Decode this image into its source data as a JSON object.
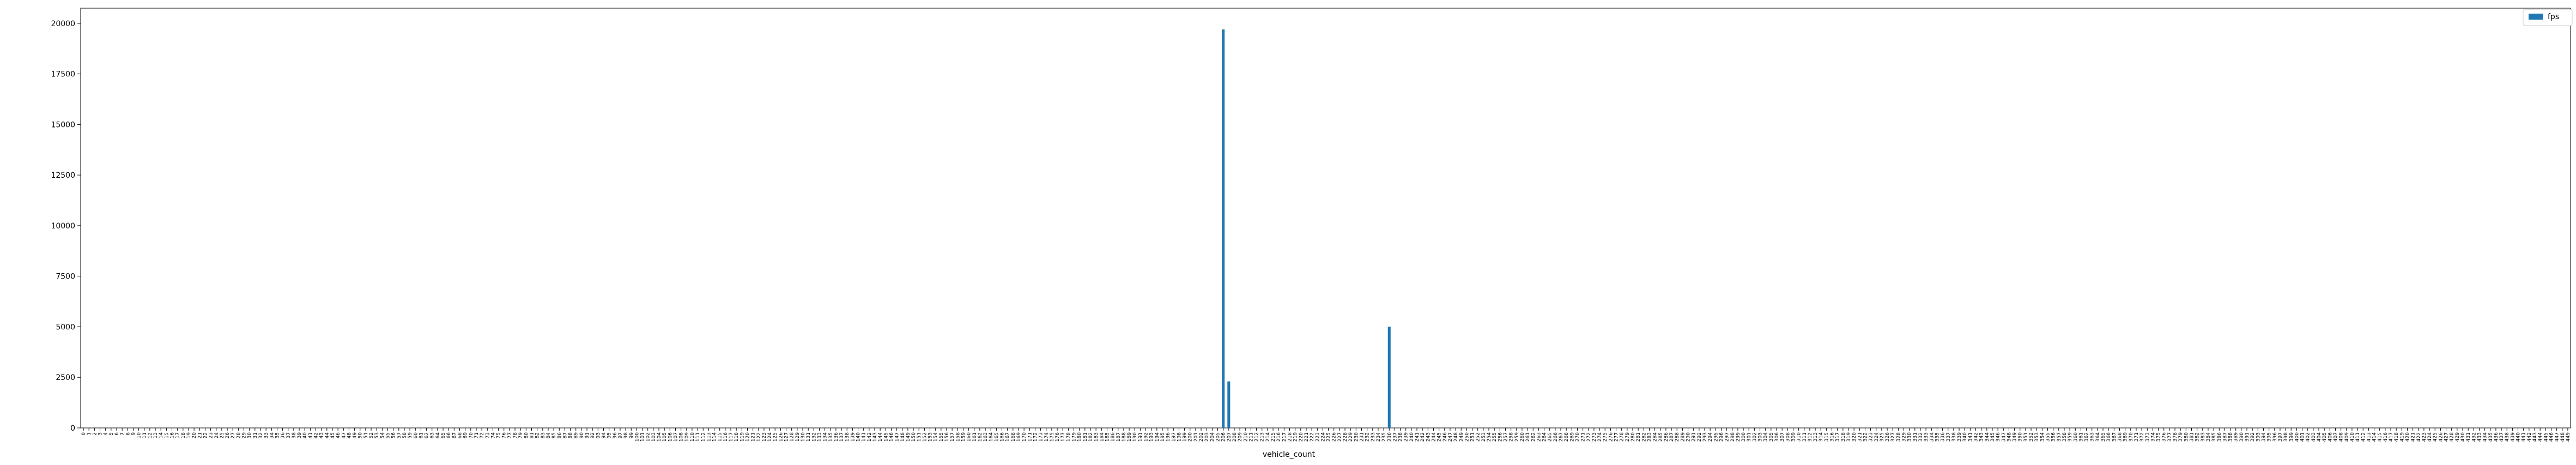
{
  "chart_data": {
    "type": "bar",
    "xlabel": "vehicle_count",
    "ylabel": "",
    "title": "",
    "category_start": 0,
    "category_count": 450,
    "ylim": [
      0,
      20750
    ],
    "yticks": [
      0,
      2500,
      5000,
      7500,
      10000,
      12500,
      15000,
      17500,
      20000
    ],
    "legend_position": "upper right",
    "grid": false,
    "series": [
      {
        "name": "fps",
        "color": "#1f77b4",
        "nonzero_points": [
          {
            "category": 206,
            "value": 19700
          },
          {
            "category": 207,
            "value": 2300
          },
          {
            "category": 236,
            "value": 5000
          }
        ],
        "other_values": 0
      }
    ]
  }
}
